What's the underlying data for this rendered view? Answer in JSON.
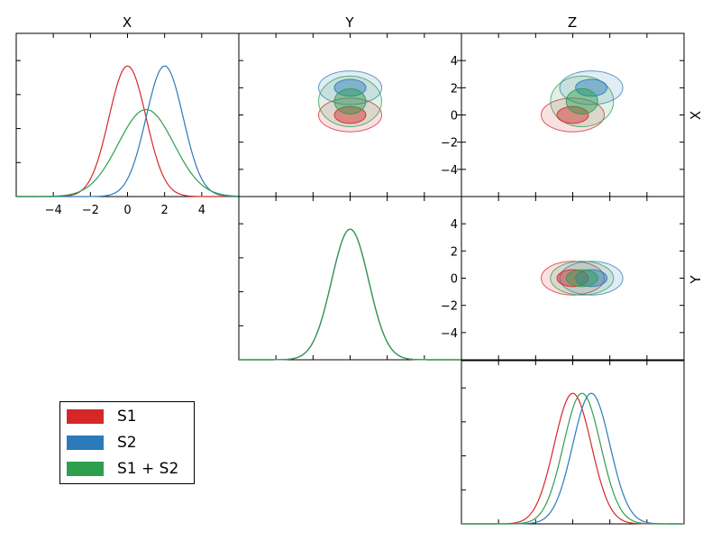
{
  "chart_data": {
    "type": "triangle",
    "title": "",
    "parameters": [
      "X",
      "Y",
      "Z"
    ],
    "right_labels": [
      "X",
      "Y"
    ],
    "axis_range": [
      -6,
      6
    ],
    "series": [
      {
        "name": "S1",
        "color": "#d62728",
        "mean": {
          "X": 0.0,
          "Y": 0.0,
          "Z": 0.0
        },
        "std": {
          "X": 1.0,
          "Y": 1.0,
          "Z": 1.0
        }
      },
      {
        "name": "S2",
        "color": "#2b7bba",
        "mean": {
          "X": 2.0,
          "Y": 0.0,
          "Z": 1.0
        },
        "std": {
          "X": 1.0,
          "Y": 1.0,
          "Z": 1.0
        }
      },
      {
        "name": "S1 + S2",
        "color": "#2e9e4f",
        "mean": {
          "X": 1.0,
          "Y": 0.0,
          "Z": 0.5
        },
        "std": {
          "X": 1.5,
          "Y": 1.0,
          "Z": 1.0
        }
      }
    ],
    "diag_x_ticks": [
      -4,
      -2,
      0,
      2,
      4
    ],
    "offdiag_y_ticks": [
      -4,
      -2,
      0,
      2,
      4
    ],
    "legend": {
      "placement": "lower-left",
      "entries": [
        "S1",
        "S2",
        "S1 + S2"
      ]
    }
  }
}
